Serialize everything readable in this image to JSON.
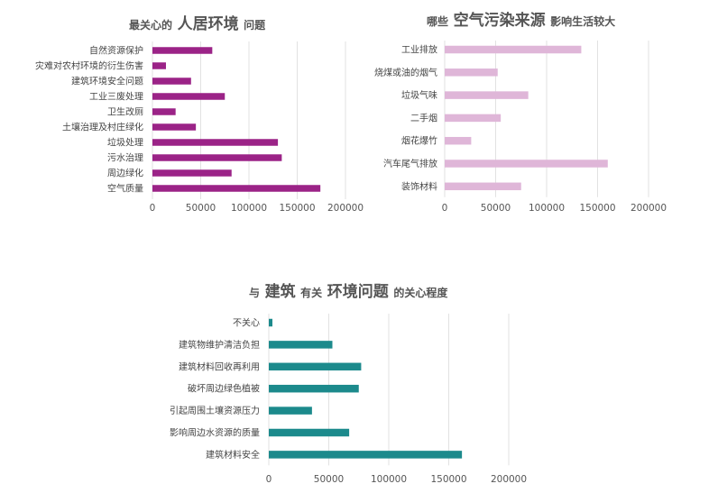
{
  "titles": {
    "chart1": {
      "pre": "最关心的",
      "big": "人居环境",
      "post": "问题"
    },
    "chart2": {
      "pre": "哪些",
      "big": "空气污染来源",
      "post": "影响生活较大"
    },
    "chart3": {
      "pre": "与",
      "big1": "建筑",
      "mid": "有关",
      "big2": "环境问题",
      "post": "的关心程度"
    }
  },
  "colors": {
    "chart1": "#9b2387",
    "chart2": "#dfb6d8",
    "chart3": "#1c8a8c"
  },
  "chart_data": [
    {
      "type": "bar",
      "orientation": "horizontal",
      "categories": [
        "自然资源保护",
        "灾难对农村环境的衍生伤害",
        "建筑环境安全问题",
        "工业三废处理",
        "卫生改厕",
        "土壤治理及村庄绿化",
        "垃圾处理",
        "污水治理",
        "周边绿化",
        "空气质量"
      ],
      "values": [
        62000,
        14000,
        40000,
        75000,
        24000,
        45000,
        130000,
        134000,
        82000,
        174000
      ],
      "xlim": [
        0,
        200000
      ],
      "ticks": [
        0,
        50000,
        100000,
        150000,
        200000
      ]
    },
    {
      "type": "bar",
      "orientation": "horizontal",
      "categories": [
        "工业排放",
        "烧煤或油的烟气",
        "垃圾气味",
        "二手烟",
        "烟花爆竹",
        "汽车尾气排放",
        "装饰材料"
      ],
      "values": [
        134000,
        52000,
        82000,
        55000,
        26000,
        160000,
        75000
      ],
      "xlim": [
        0,
        200000
      ],
      "ticks": [
        0,
        50000,
        100000,
        150000,
        200000
      ]
    },
    {
      "type": "bar",
      "orientation": "horizontal",
      "categories": [
        "不关心",
        "建筑物维护清洁负担",
        "建筑材料回收再利用",
        "破坏周边绿色植被",
        "引起周围土壤资源压力",
        "影响周边水资源的质量",
        "建筑材料安全"
      ],
      "values": [
        3000,
        53000,
        77000,
        75000,
        36000,
        67000,
        161000
      ],
      "xlim": [
        0,
        200000
      ],
      "ticks": [
        0,
        50000,
        100000,
        150000,
        200000
      ]
    }
  ]
}
